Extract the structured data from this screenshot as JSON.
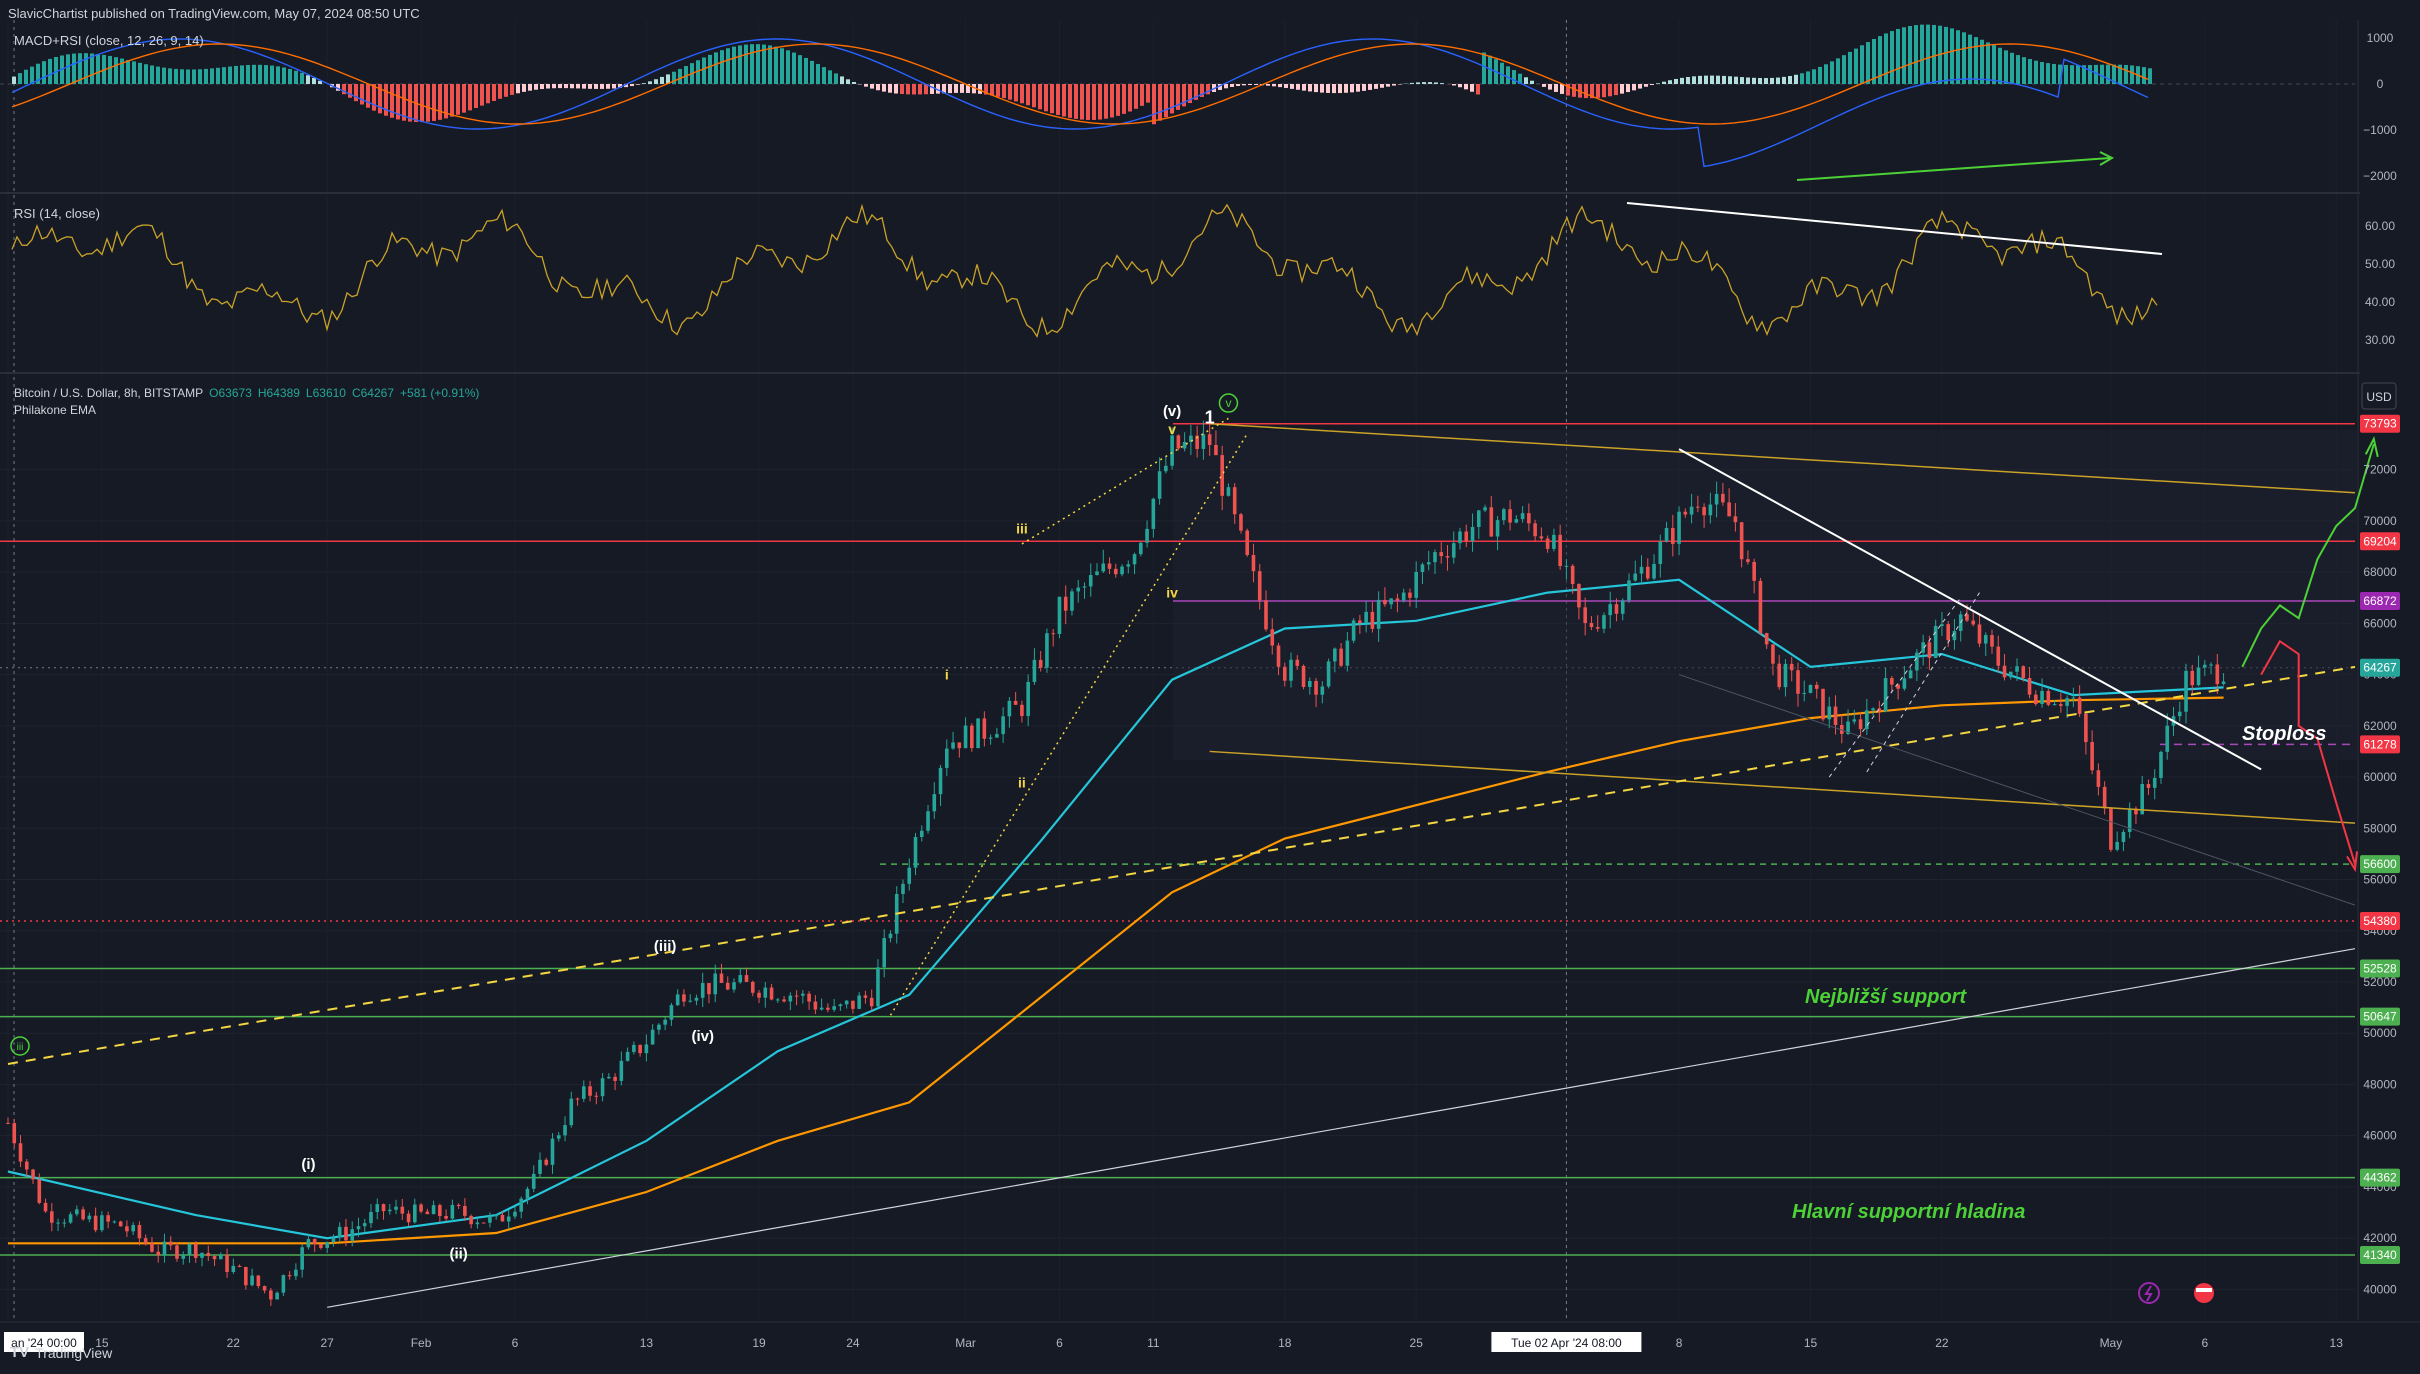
{
  "header": {
    "publisher_line": "SlavicChartist published on TradingView.com, May 07, 2024 08:50 UTC"
  },
  "macd_pane": {
    "label": "MACD+RSI (close, 12, 26, 9, 14)",
    "ticks": [
      "1000",
      "0",
      "−1000",
      "−2000"
    ]
  },
  "rsi_pane": {
    "label": "RSI (14, close)",
    "ticks": [
      "60.00",
      "50.00",
      "40.00",
      "30.00"
    ]
  },
  "main_pane": {
    "symbol_prefix": "Bitcoin / U.S. Dollar, 8h, BITSTAMP",
    "ohlc_o": "O63673",
    "ohlc_h": "H64389",
    "ohlc_l": "L63610",
    "ohlc_c": "C64267",
    "ohlc_change": "+581 (+0.91%)",
    "indicator": "Philakone EMA",
    "currency": "USD",
    "price_ticks": [
      "72000",
      "70000",
      "68000",
      "66000",
      "64000",
      "62000",
      "60000",
      "58000",
      "56000",
      "54000",
      "52000",
      "50000",
      "48000",
      "46000",
      "44000",
      "42000",
      "40000"
    ]
  },
  "price_tags": [
    {
      "value": "73793",
      "color": "#f23645",
      "price": 73793
    },
    {
      "value": "69204",
      "color": "#f23645",
      "price": 69204
    },
    {
      "value": "66872",
      "color": "#9c27b0",
      "price": 66872
    },
    {
      "value": "64267",
      "color": "#26a69a",
      "price": 64267
    },
    {
      "value": "61278",
      "color": "#f23645",
      "price": 61278
    },
    {
      "value": "56600",
      "color": "#4caf50",
      "price": 56600
    },
    {
      "value": "54380",
      "color": "#f23645",
      "price": 54380
    },
    {
      "value": "52528",
      "color": "#4caf50",
      "price": 52528
    },
    {
      "value": "50647",
      "color": "#4caf50",
      "price": 50647
    },
    {
      "value": "44362",
      "color": "#4caf50",
      "price": 44362
    },
    {
      "value": "41340",
      "color": "#4caf50",
      "price": 41340
    }
  ],
  "time_axis": {
    "labels": [
      "an '24   00:00",
      "15",
      "22",
      "27",
      "Feb",
      "6",
      "13",
      "19",
      "24",
      "Mar",
      "6",
      "11",
      "18",
      "25",
      "Tue 02 Apr '24   08:00",
      "8",
      "15",
      "22",
      "May",
      "6",
      "13"
    ]
  },
  "annotations": {
    "wave_i": "i",
    "wave_ii": "ii",
    "wave_iii": "iii",
    "wave_iv": "iv",
    "wave_v": "v",
    "wave_cap_v": "(v)",
    "wave_cap_i": "(i)",
    "wave_cap_ii": "(ii)",
    "wave_cap_iii": "(iii)",
    "wave_cap_iv": "(iv)",
    "circle_v": "v",
    "circle_iii": "iii",
    "wave_one": "1",
    "stoploss": "Stoploss",
    "nearest_support": "Nejbližší support",
    "main_support": "Hlavní supportní hladina"
  },
  "footer": {
    "brand": "TradingView"
  },
  "chart_data": {
    "type": "line",
    "title": "Bitcoin / U.S. Dollar, 8h, BITSTAMP",
    "ylabel": "USD",
    "ylim": [
      39000,
      75500
    ],
    "xlim": [
      "2024-01-10",
      "2024-05-14"
    ],
    "series": [
      {
        "name": "Bitcoin / U.S. Dollar",
        "x": [
          "2024-01-10",
          "2024-01-12",
          "2024-01-14",
          "2024-01-16",
          "2024-01-18",
          "2024-01-20",
          "2024-01-22",
          "2024-01-24",
          "2024-01-26",
          "2024-01-28",
          "2024-01-30",
          "2024-02-01",
          "2024-02-03",
          "2024-02-05",
          "2024-02-07",
          "2024-02-09",
          "2024-02-11",
          "2024-02-13",
          "2024-02-15",
          "2024-02-17",
          "2024-02-19",
          "2024-02-21",
          "2024-02-23",
          "2024-02-25",
          "2024-02-27",
          "2024-02-29",
          "2024-03-02",
          "2024-03-04",
          "2024-03-06",
          "2024-03-08",
          "2024-03-10",
          "2024-03-12",
          "2024-03-14",
          "2024-03-16",
          "2024-03-18",
          "2024-03-20",
          "2024-03-22",
          "2024-03-24",
          "2024-03-26",
          "2024-03-28",
          "2024-03-30",
          "2024-04-01",
          "2024-04-03",
          "2024-04-05",
          "2024-04-07",
          "2024-04-09",
          "2024-04-11",
          "2024-04-13",
          "2024-04-15",
          "2024-04-17",
          "2024-04-19",
          "2024-04-21",
          "2024-04-23",
          "2024-04-25",
          "2024-04-27",
          "2024-04-29",
          "2024-05-01",
          "2024-05-03",
          "2024-05-05",
          "2024-05-07"
        ],
        "values": [
          46500,
          43000,
          42700,
          42500,
          41500,
          41600,
          40800,
          39800,
          41800,
          42200,
          43100,
          42900,
          43000,
          42600,
          44200,
          47200,
          48200,
          49700,
          51700,
          51900,
          51800,
          51500,
          50800,
          51500,
          56800,
          61400,
          61800,
          62800,
          66500,
          67800,
          68900,
          72800,
          73100,
          68300,
          64200,
          63700,
          66000,
          66800,
          68700,
          69800,
          70200,
          69500,
          65800,
          67200,
          68900,
          71000,
          70000,
          64200,
          63200,
          61700,
          63400,
          64900,
          66200,
          64500,
          63400,
          63000,
          57600,
          59600,
          63800,
          64267
        ]
      },
      {
        "name": "EMA (fast)",
        "x": [
          "2024-01-10",
          "2024-01-20",
          "2024-01-27",
          "2024-02-05",
          "2024-02-13",
          "2024-02-20",
          "2024-02-27",
          "2024-03-05",
          "2024-03-12",
          "2024-03-18",
          "2024-03-25",
          "2024-04-01",
          "2024-04-08",
          "2024-04-15",
          "2024-04-22",
          "2024-04-29",
          "2024-05-07"
        ],
        "values": [
          44600,
          42900,
          42000,
          42900,
          45800,
          49300,
          51500,
          57500,
          63800,
          65800,
          66100,
          67200,
          67700,
          64300,
          64800,
          63200,
          63500
        ]
      },
      {
        "name": "EMA (slow)",
        "x": [
          "2024-01-10",
          "2024-01-20",
          "2024-01-27",
          "2024-02-05",
          "2024-02-13",
          "2024-02-20",
          "2024-02-27",
          "2024-03-05",
          "2024-03-12",
          "2024-03-18",
          "2024-03-25",
          "2024-04-01",
          "2024-04-08",
          "2024-04-15",
          "2024-04-22",
          "2024-04-29",
          "2024-05-07"
        ],
        "values": [
          41800,
          41800,
          41800,
          42200,
          43800,
          45800,
          47300,
          51400,
          55500,
          57600,
          58900,
          60200,
          61400,
          62300,
          62800,
          63000,
          63100
        ]
      }
    ],
    "levels": [
      73793,
      69204,
      66872,
      61278,
      56600,
      54380,
      52528,
      50647,
      44362,
      41340
    ],
    "grid": true
  }
}
